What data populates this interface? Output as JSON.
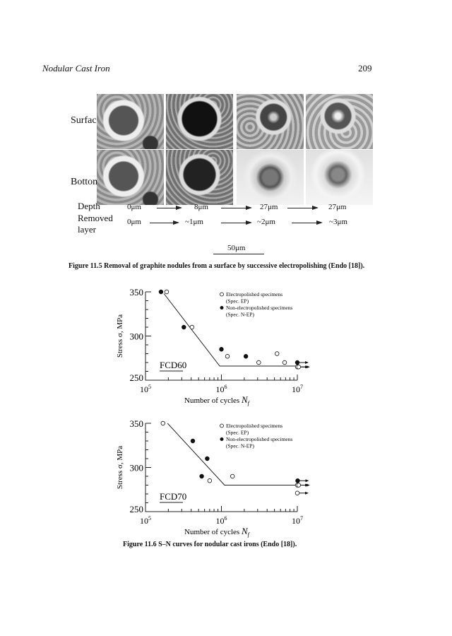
{
  "header": {
    "running_title": "Nodular Cast Iron",
    "page_number": "209"
  },
  "figure_11_5": {
    "row_labels": [
      "Surface",
      "Bottom"
    ],
    "depth_label": "Depth",
    "depth_values": [
      "0μm",
      "8μm",
      "27μm",
      "27μm"
    ],
    "removed_label_line1": "Removed",
    "removed_label_line2": "layer",
    "removed_values": [
      "0μm",
      "~1μm",
      "~2μm",
      "~3μm"
    ],
    "scale_bar": "50μm",
    "caption": "Figure 11.5  Removal of graphite nodules from a surface by successive electropolishing (Endo [18])."
  },
  "figure_11_6": {
    "caption": "Figure 11.6  S–N curves for nodular cast irons (Endo [18])."
  },
  "chart_data": [
    {
      "type": "scatter",
      "label": "FCD60",
      "xlabel": "Number of cycles  N_f",
      "ylabel": "Stress  σ, MPa",
      "xscale": "log",
      "xlim": [
        100000,
        10000000
      ],
      "ylim": [
        250,
        350
      ],
      "xticks": [
        "10^5",
        "10^6",
        "10^7"
      ],
      "yticks": [
        "250",
        "300",
        "350"
      ],
      "legend": {
        "placement": "top-right",
        "entries": [
          "Electropolished specimens",
          "(Spec. EP)",
          "Non-electropolished specimens",
          "(Spec. N-EP)"
        ]
      },
      "series": [
        {
          "name": "Electropolished specimens (Spec. EP)",
          "marker": "open-circle",
          "points": [
            [
              190000,
              350
            ],
            [
              410000,
              310
            ],
            [
              1200000,
              277
            ],
            [
              3100000,
              270
            ],
            [
              5400000,
              280
            ],
            [
              6800000,
              270
            ]
          ],
          "runouts": [
            [
              10000000,
              265
            ],
            [
              10400000,
              265
            ]
          ]
        },
        {
          "name": "Non-electropolished specimens (Spec. N-EP)",
          "marker": "filled-circle",
          "points": [
            [
              160000,
              350
            ],
            [
              320000,
              310
            ],
            [
              1000000,
              285
            ],
            [
              2100000,
              277
            ]
          ],
          "runouts": [
            [
              10000000,
              270
            ]
          ]
        }
      ],
      "sn_curve": [
        [
          175000,
          348
        ],
        [
          950000,
          266
        ],
        [
          10000000,
          266
        ]
      ]
    },
    {
      "type": "scatter",
      "label": "FCD70",
      "xlabel": "Number of cycles  N_f",
      "ylabel": "Stress  σ, MPa",
      "xscale": "log",
      "xlim": [
        100000,
        10000000
      ],
      "ylim": [
        250,
        350
      ],
      "xticks": [
        "10^5",
        "10^6",
        "10^7"
      ],
      "yticks": [
        "250",
        "300",
        "350"
      ],
      "legend": {
        "placement": "top-right",
        "entries": [
          "Electropolished specimens",
          "(Spec. EP)",
          "Non-electropolished specimens",
          "(Spec. N-EP)"
        ]
      },
      "series": [
        {
          "name": "Electropolished specimens (Spec. EP)",
          "marker": "open-circle",
          "points": [
            [
              170000,
              350
            ],
            [
              700000,
              285
            ],
            [
              1400000,
              290
            ]
          ],
          "runouts": [
            [
              10000000,
              280
            ],
            [
              10400000,
              280
            ],
            [
              10000000,
              271
            ]
          ]
        },
        {
          "name": "Non-electropolished specimens (Spec. N-EP)",
          "marker": "filled-circle",
          "points": [
            [
              420000,
              330
            ],
            [
              650000,
              310
            ],
            [
              550000,
              290
            ]
          ],
          "runouts": [
            [
              10100000,
              285
            ]
          ]
        }
      ],
      "sn_curve": [
        [
          195000,
          350
        ],
        [
          1100000,
          280
        ],
        [
          10000000,
          280
        ]
      ]
    }
  ]
}
